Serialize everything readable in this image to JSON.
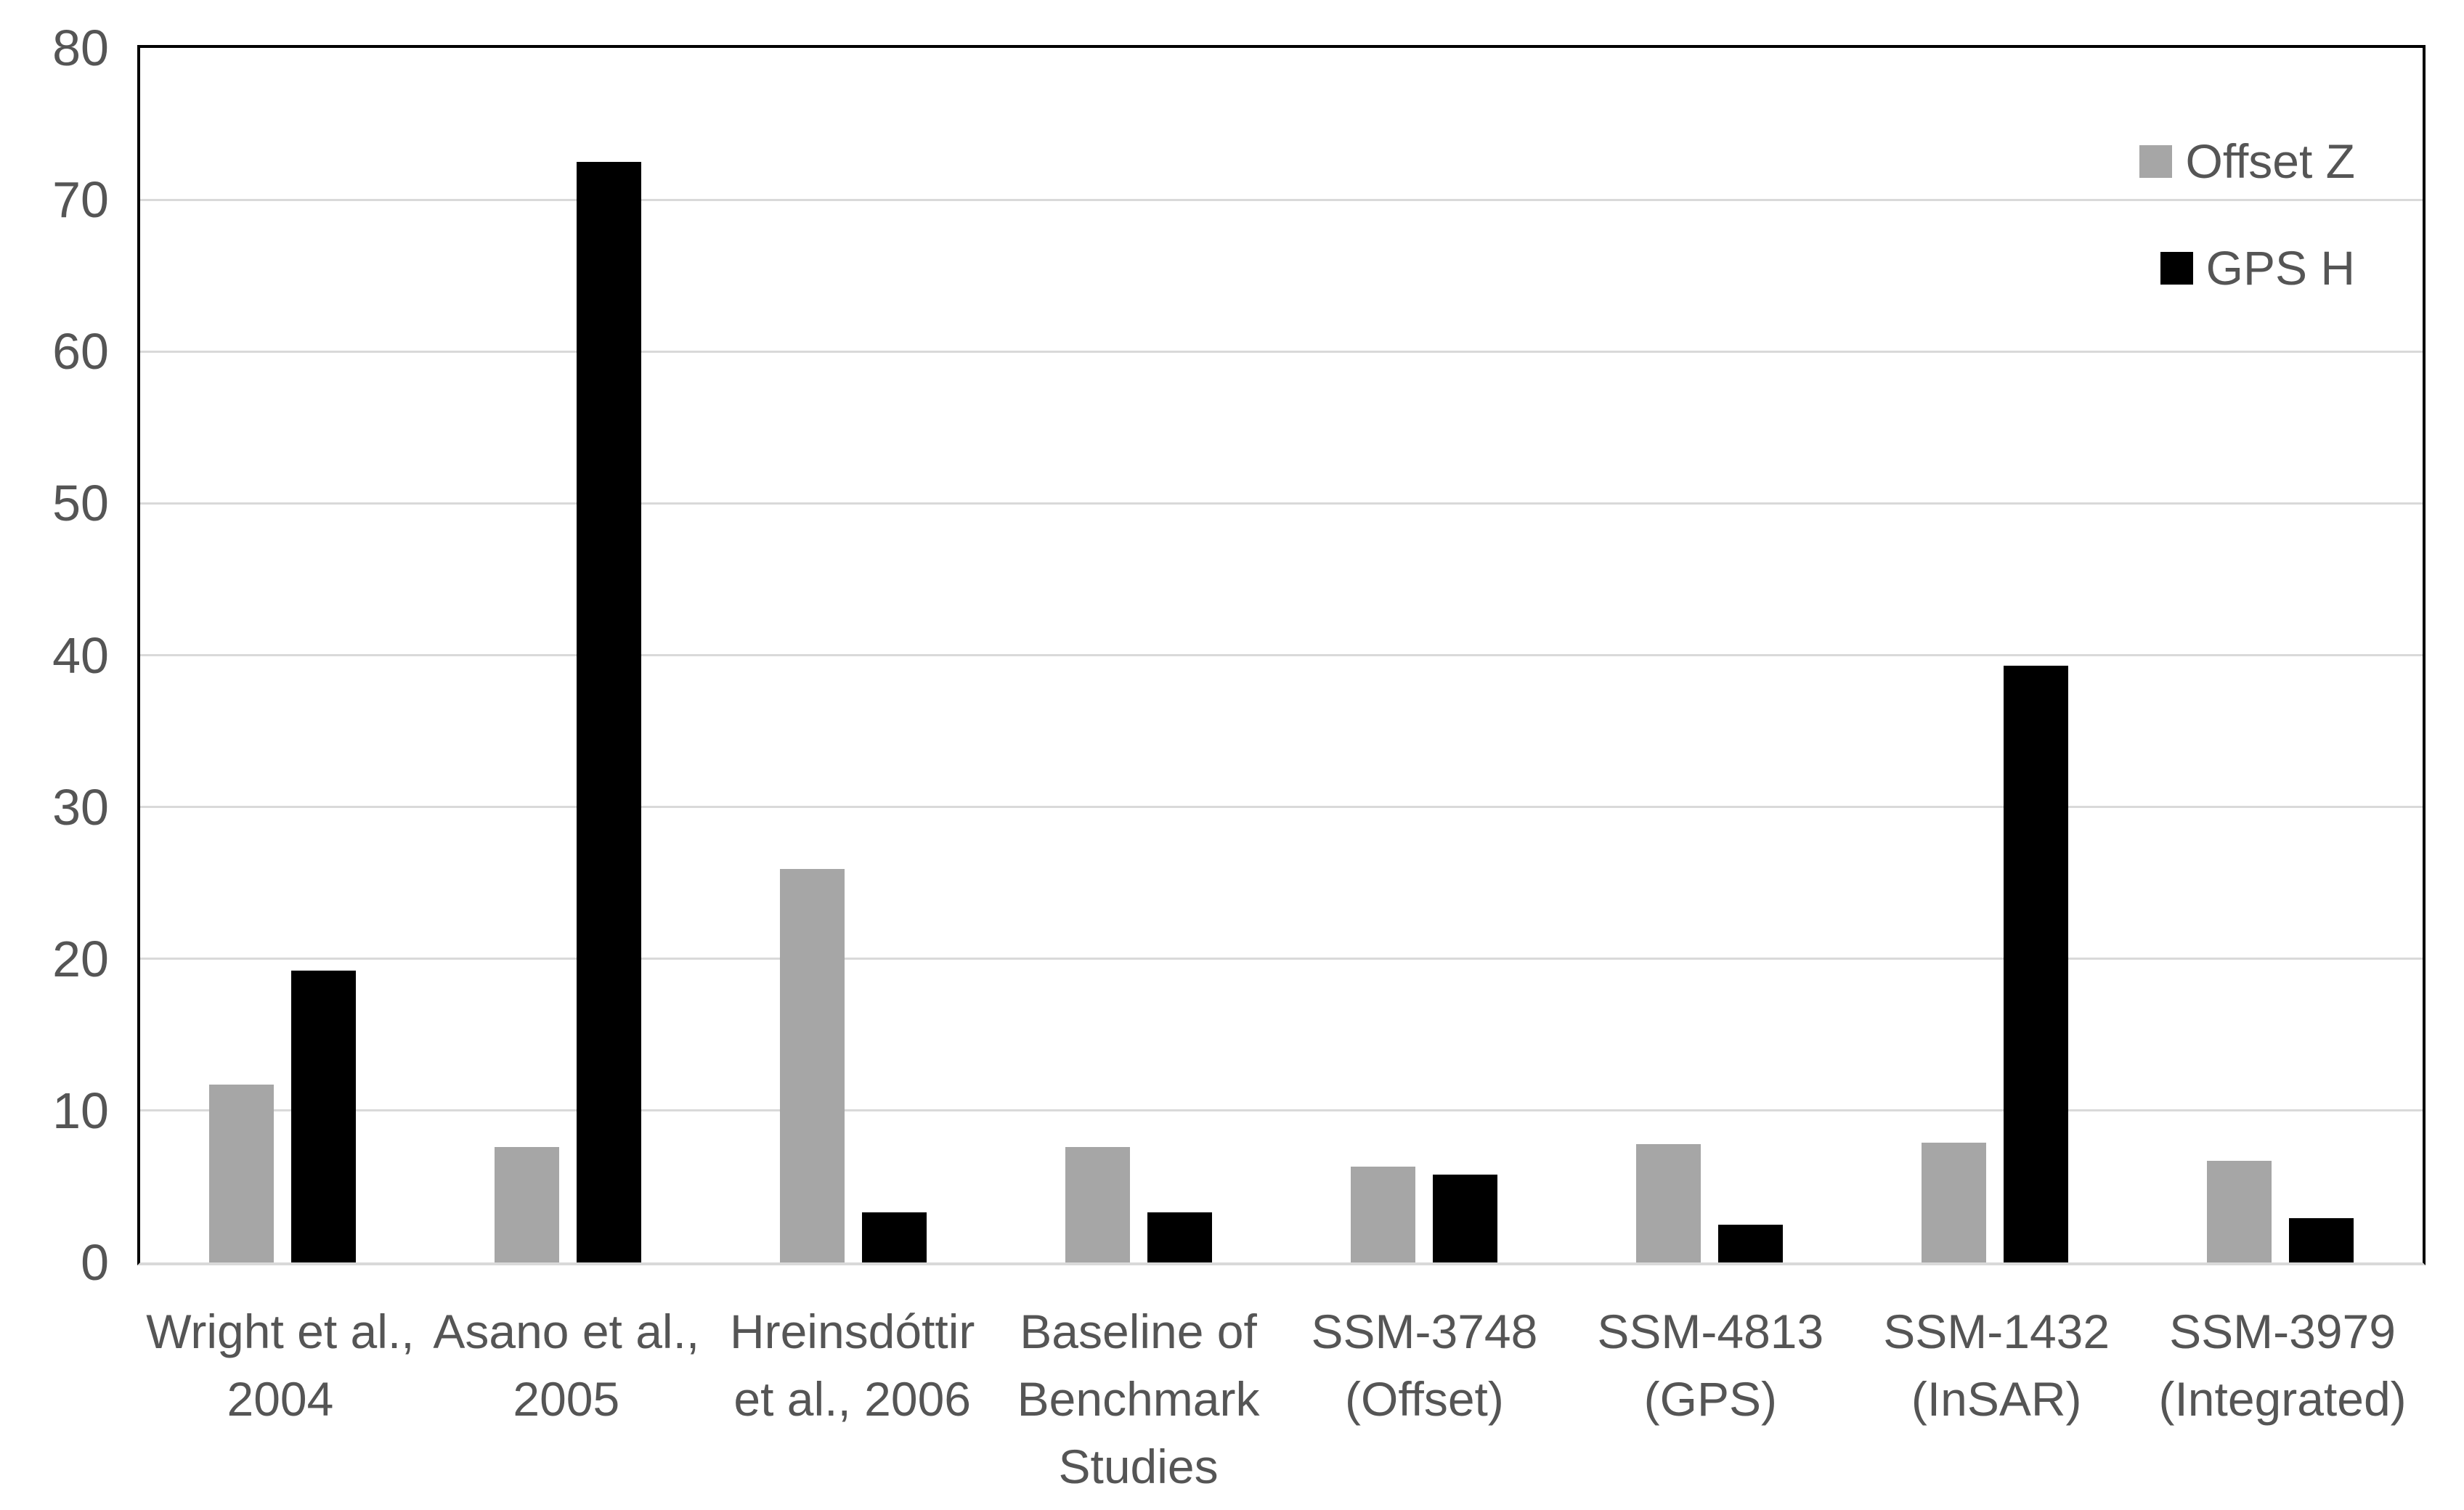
{
  "chart_data": {
    "type": "bar",
    "title": "",
    "xlabel": "",
    "ylabel": "",
    "categories": [
      "Wright et al., 2004",
      "Asano et al., 2005",
      "Hreinsdóttir et al., 2006",
      "Baseline of Benchmark Studies",
      "SSM-3748 (Offset)",
      "SSM-4813 (GPS)",
      "SSM-1432 (InSAR)",
      "SSM-3979 (Integrated)"
    ],
    "series": [
      {
        "name": "Offset Z",
        "color": "#a6a6a6",
        "values": [
          11.7,
          7.6,
          25.9,
          7.6,
          6.3,
          7.8,
          7.9,
          6.7
        ]
      },
      {
        "name": "GPS H",
        "color": "#000000",
        "values": [
          19.2,
          72.5,
          3.3,
          3.3,
          5.8,
          2.5,
          39.3,
          2.9
        ]
      }
    ],
    "ylim": [
      0,
      80
    ],
    "yticks": [
      0,
      10,
      20,
      30,
      40,
      50,
      60,
      70,
      80
    ],
    "grid": "horizontal",
    "legend_position": "top-right"
  },
  "colors": {
    "gridline": "#d9d9d9",
    "axis_frame": "#000000",
    "baseline": "#d9d9d9",
    "label_text": "#555555",
    "background": "#ffffff"
  }
}
